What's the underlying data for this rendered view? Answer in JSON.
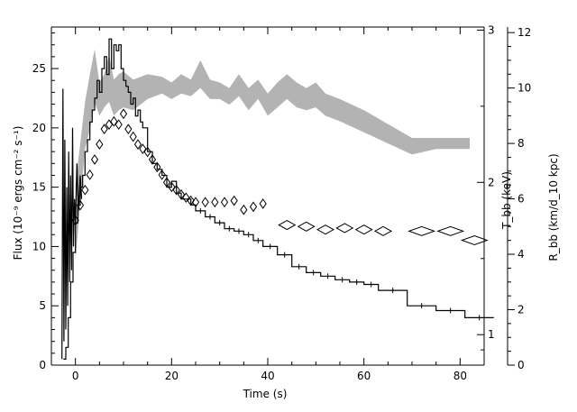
{
  "chart_data": {
    "type": "line",
    "xlabel": "Time (s)",
    "ylabel_left": "Flux (10⁻⁹ ergs cm⁻² s⁻¹)",
    "ylabel_right_inner": "T_bb (keV)",
    "ylabel_right_outer": "R_bb (km/d_10 kpc)",
    "x_range": [
      -5,
      85
    ],
    "x_ticks": [
      0,
      20,
      40,
      60,
      80
    ],
    "y_left_range": [
      0,
      28.5
    ],
    "y_left_ticks": [
      0,
      5,
      10,
      15,
      20,
      25
    ],
    "y_T_range": [
      0.8,
      3.02
    ],
    "y_T_ticks": [
      1,
      2,
      3
    ],
    "y_R_range": [
      0,
      12.2
    ],
    "y_R_ticks": [
      0,
      2,
      4,
      6,
      8,
      10,
      12
    ],
    "grid": false,
    "series": [
      {
        "axis": "left",
        "style": "step",
        "x": [
          -2.5,
          -2,
          -1.5,
          -1,
          -0.5,
          0,
          0.5,
          1,
          1.5,
          2,
          2.5,
          3,
          3.5,
          4,
          4.5,
          5,
          5.5,
          6,
          6.5,
          7,
          7.5,
          8,
          8.5,
          9,
          9.5,
          10,
          10.5,
          11,
          11.5,
          12,
          12.5,
          13,
          13.5,
          14,
          15,
          16,
          17,
          18,
          19,
          20,
          21,
          22,
          23,
          24,
          25,
          27,
          29,
          31,
          33,
          35,
          37,
          39,
          42,
          45,
          48,
          51,
          54,
          57,
          60,
          63,
          69,
          75,
          81
        ],
        "values": [
          0.5,
          1.5,
          4,
          7,
          9.5,
          12,
          13.5,
          15,
          16,
          18,
          19,
          20.5,
          21.5,
          22.5,
          24,
          23,
          25,
          26,
          24.5,
          27.5,
          25,
          27,
          26.5,
          27,
          25,
          24,
          23.5,
          23,
          22,
          22.5,
          21,
          21.5,
          20.5,
          20,
          18,
          17,
          16.5,
          16,
          15,
          15.5,
          14.5,
          14,
          14,
          13.5,
          13,
          12.5,
          12,
          11.5,
          11.3,
          11,
          10.5,
          10,
          9.3,
          8.3,
          7.8,
          7.5,
          7.2,
          7,
          6.8,
          6.3,
          5,
          4.6,
          4
        ]
      },
      {
        "axis": "left",
        "style": "noisy-line",
        "x": [
          -2.8,
          -2.6,
          -2.4,
          -2.2,
          -2,
          -1.8,
          -1.6,
          -1.4,
          -1.2,
          -1,
          -0.8,
          -0.6,
          -0.4,
          -0.2,
          0,
          0.3,
          0.6,
          1,
          1.3
        ],
        "values": [
          0.5,
          23.3,
          2,
          19,
          3,
          15,
          5,
          18,
          7,
          16,
          8,
          20,
          10,
          14,
          12,
          17,
          13,
          16,
          14
        ]
      },
      {
        "axis": "T",
        "style": "diamond",
        "x": [
          0,
          1,
          2,
          3,
          4,
          5,
          6,
          7,
          8,
          9,
          10,
          11,
          12,
          13,
          14,
          15,
          16,
          17,
          18,
          19,
          20,
          21,
          22,
          23,
          24,
          25,
          27,
          29,
          31,
          33,
          35,
          37,
          39,
          44,
          48,
          52,
          56,
          60,
          64,
          72,
          78,
          83
        ],
        "values": [
          1.75,
          1.85,
          1.95,
          2.05,
          2.15,
          2.25,
          2.35,
          2.38,
          2.4,
          2.38,
          2.45,
          2.35,
          2.3,
          2.25,
          2.22,
          2.2,
          2.15,
          2.1,
          2.05,
          2.0,
          1.97,
          1.95,
          1.92,
          1.9,
          1.88,
          1.87,
          1.87,
          1.87,
          1.87,
          1.88,
          1.82,
          1.84,
          1.86,
          1.72,
          1.71,
          1.69,
          1.7,
          1.69,
          1.68,
          1.68,
          1.68,
          1.62
        ]
      },
      {
        "axis": "R",
        "style": "band",
        "x": [
          0,
          2,
          3,
          4,
          5,
          6,
          7,
          8,
          9,
          10,
          12,
          15,
          18,
          20,
          22,
          24,
          26,
          28,
          30,
          32,
          34,
          36,
          38,
          40,
          42,
          44,
          46,
          48,
          50,
          52,
          55,
          60,
          65,
          70,
          75,
          82
        ],
        "low": [
          3.8,
          7.8,
          8.5,
          9.5,
          9.0,
          9.3,
          9.5,
          9.0,
          9.2,
          9.3,
          9.2,
          9.6,
          9.8,
          9.6,
          9.8,
          9.7,
          10.0,
          9.6,
          9.6,
          9.4,
          9.7,
          9.2,
          9.6,
          9.0,
          9.3,
          9.6,
          9.3,
          9.2,
          9.3,
          9.0,
          8.8,
          8.4,
          8.0,
          7.6,
          7.8,
          7.8
        ],
        "high": [
          6.5,
          9.5,
          10.5,
          11.4,
          10.2,
          10.5,
          11.2,
          10.3,
          10.5,
          10.6,
          10.3,
          10.5,
          10.4,
          10.2,
          10.5,
          10.3,
          11.0,
          10.3,
          10.2,
          10.0,
          10.5,
          10.0,
          10.3,
          9.8,
          10.2,
          10.5,
          10.2,
          10.0,
          10.2,
          9.8,
          9.6,
          9.2,
          8.7,
          8.2,
          8.2,
          8.2
        ]
      }
    ]
  }
}
